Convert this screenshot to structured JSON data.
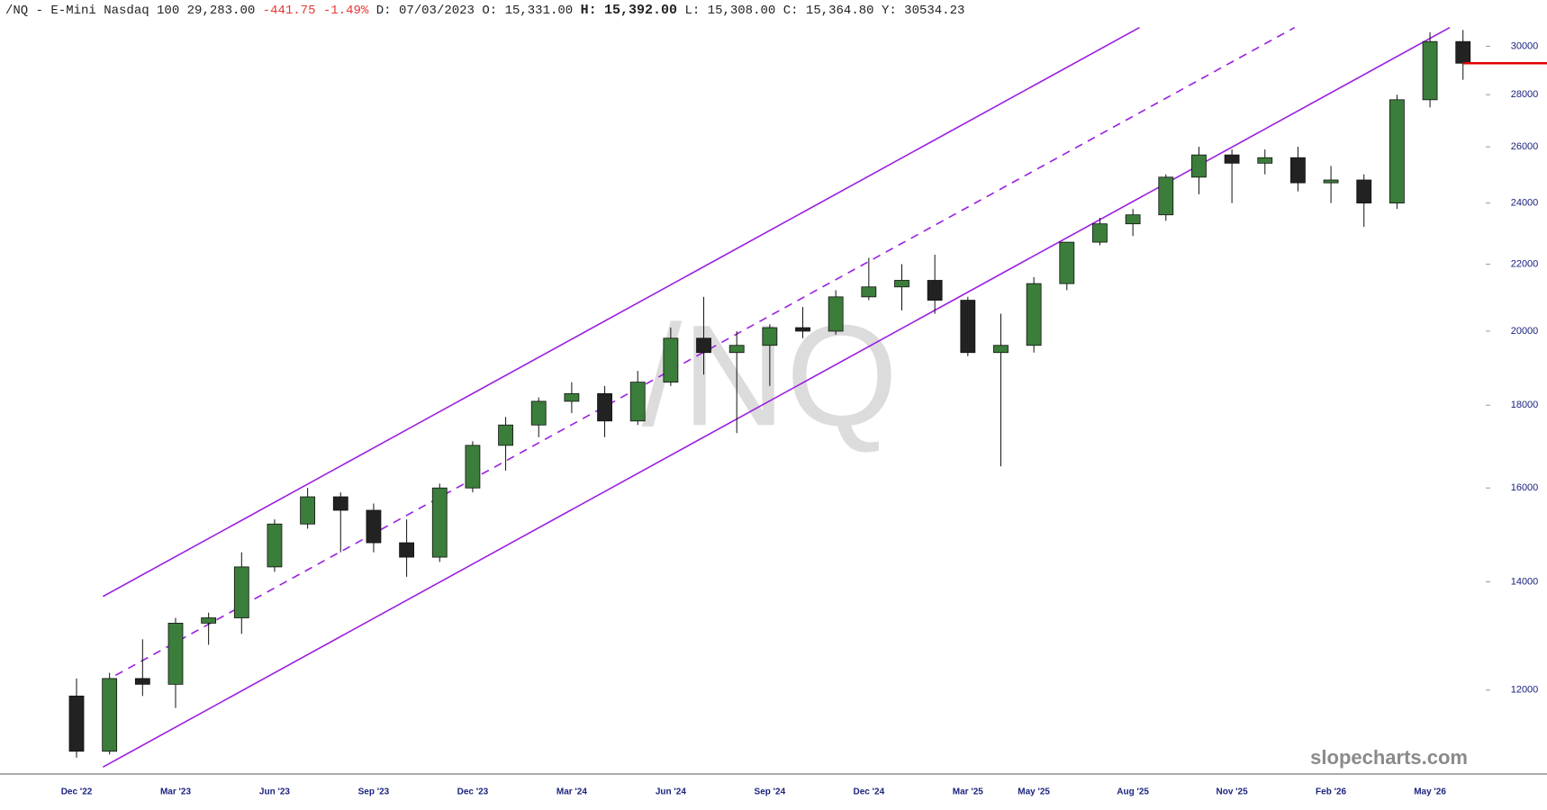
{
  "header": {
    "symbol": "/NQ - E-Mini Nasdaq 100",
    "last": "29,283.00",
    "change": "-441.75",
    "change_pct": "-1.49%",
    "fields": [
      {
        "label": "D:",
        "value": "07/03/2023"
      },
      {
        "label": "O:",
        "value": "15,331.00"
      },
      {
        "label": "H:",
        "value": "15,392.00"
      },
      {
        "label": "L:",
        "value": "15,308.00"
      },
      {
        "label": "C:",
        "value": "15,364.80"
      },
      {
        "label": "Y:",
        "value": "30534.23"
      }
    ]
  },
  "chart_data": {
    "type": "candlestick",
    "watermark": "/NQ",
    "brand": "slopecharts.com",
    "categories": [
      "Dec '22",
      null,
      null,
      "Mar '23",
      null,
      null,
      "Jun '23",
      null,
      null,
      "Sep '23",
      null,
      null,
      "Dec '23",
      null,
      null,
      "Mar '24",
      null,
      null,
      "Jun '24",
      null,
      null,
      "Sep '24",
      null,
      null,
      "Dec '24",
      null,
      null,
      "Mar '25",
      null,
      "May '25",
      null,
      null,
      "Aug '25",
      null,
      null,
      "Nov '25",
      null,
      null,
      "Feb '26",
      null,
      null,
      "May '26",
      null
    ],
    "open": [
      11900,
      11000,
      12200,
      12100,
      13200,
      13300,
      14300,
      15200,
      15800,
      15500,
      14800,
      14500,
      16000,
      17000,
      17500,
      18100,
      18300,
      17600,
      18600,
      19800,
      19400,
      19600,
      20100,
      20000,
      21000,
      21300,
      21500,
      20900,
      19400,
      19600,
      21400,
      22700,
      23300,
      23600,
      24900,
      25700,
      25400,
      25600,
      24700,
      24800,
      24000,
      27800,
      30200
    ],
    "high": [
      12200,
      12300,
      12900,
      13300,
      13400,
      14600,
      15300,
      16000,
      15900,
      15650,
      15300,
      16100,
      17100,
      17700,
      18200,
      18600,
      18500,
      18900,
      20100,
      21000,
      20000,
      20200,
      20700,
      21200,
      22200,
      22000,
      22300,
      21000,
      20500,
      21600,
      22700,
      23500,
      23800,
      25000,
      26000,
      25900,
      25900,
      26000,
      25300,
      25000,
      28000,
      30600,
      30700
    ],
    "low": [
      10900,
      10950,
      11900,
      11700,
      12800,
      13000,
      14200,
      15100,
      14600,
      14600,
      14100,
      14400,
      15900,
      16400,
      17200,
      17800,
      17200,
      17500,
      18500,
      18800,
      17300,
      18500,
      19800,
      19900,
      20900,
      20600,
      20500,
      19300,
      16500,
      19400,
      21200,
      22600,
      22900,
      23400,
      24300,
      24000,
      25000,
      24400,
      24000,
      23200,
      23800,
      27500,
      28600
    ],
    "close": [
      11000,
      12200,
      12100,
      13200,
      13300,
      14300,
      15200,
      15800,
      15500,
      14800,
      14500,
      16000,
      17000,
      17500,
      18100,
      18300,
      17600,
      18600,
      19800,
      19400,
      19600,
      20100,
      20000,
      21000,
      21300,
      21500,
      20900,
      19400,
      19600,
      21400,
      22700,
      23300,
      23600,
      24900,
      25700,
      25400,
      25600,
      24700,
      24800,
      24000,
      27800,
      30200,
      29283
    ],
    "up_color": "#3b7d3b",
    "down_color": "#222222",
    "ylim": [
      10650,
      31070
    ],
    "log_scale": true,
    "yticks": [
      12000,
      14000,
      16000,
      18000,
      20000,
      22000,
      24000,
      26000,
      28000,
      30000
    ],
    "trendlines": [
      {
        "style": "solid",
        "color": "#9b1fe0",
        "x": [
          0.8,
          41.6
        ],
        "values": [
          10756,
          30810
        ]
      },
      {
        "style": "solid",
        "color": "#9b1fe0",
        "x": [
          0.8,
          32.2
        ],
        "values": [
          13711,
          30810
        ]
      },
      {
        "style": "dashed",
        "color": "#9b1fe0",
        "x": [
          0.8,
          36.9
        ],
        "values": [
          12135,
          30810
        ]
      }
    ],
    "hline": {
      "value": 29283,
      "color": "#e00000"
    }
  }
}
